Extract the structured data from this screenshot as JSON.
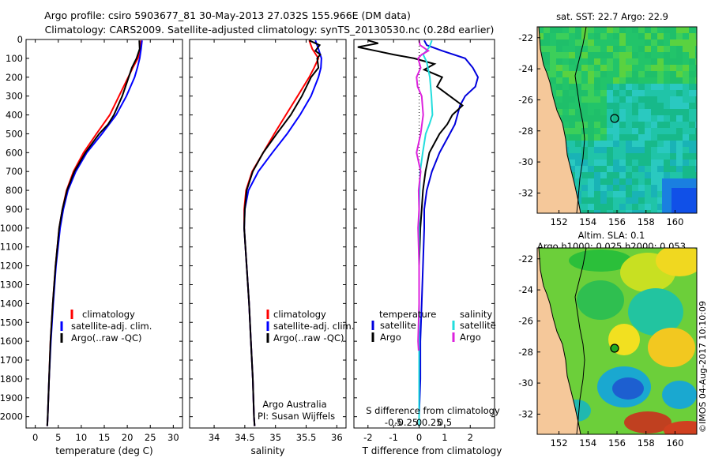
{
  "header": {
    "line1": "Argo profile: csiro 5903677_81 30-May-2013 27.032S 155.966E (DM data)",
    "line2": "Climatology: CARS2009. Satellite-adjusted climatology: synTS_20130530.nc (0.28d earlier)"
  },
  "colors": {
    "climatology": "#ff0000",
    "satellite": "#0000ff",
    "argo": "#000000",
    "t_sat": "#0000dd",
    "s_sat": "#22dddd",
    "s_argo": "#dd22dd"
  },
  "depth_ticks": [
    "0",
    "100",
    "200",
    "300",
    "400",
    "500",
    "600",
    "700",
    "800",
    "900",
    "1000",
    "1100",
    "1200",
    "1300",
    "1400",
    "1500",
    "1600",
    "1700",
    "1800",
    "1900",
    "2000"
  ],
  "chart_data": [
    {
      "type": "line",
      "name": "temperature",
      "xlabel": "temperature (deg C)",
      "xlim": [
        -2,
        32
      ],
      "ylim": [
        2060,
        0
      ],
      "xticks": [
        "0",
        "5",
        "10",
        "15",
        "20",
        "25",
        "30"
      ],
      "legend": [
        "climatology",
        "satellite-adj. clim.",
        "Argo(..raw -QC)"
      ],
      "series": [
        {
          "name": "climatology",
          "depth": [
            5,
            50,
            100,
            150,
            200,
            300,
            400,
            500,
            600,
            700,
            800,
            900,
            1000,
            1200,
            1400,
            1600,
            1800,
            2000,
            2050
          ],
          "values": [
            23.0,
            22.9,
            22.3,
            21.2,
            20.2,
            18.2,
            16.2,
            13.3,
            10.5,
            8.3,
            6.8,
            5.9,
            5.2,
            4.4,
            3.8,
            3.3,
            3.0,
            2.7,
            2.6
          ]
        },
        {
          "name": "satellite-adj. clim.",
          "depth": [
            5,
            50,
            100,
            150,
            200,
            300,
            400,
            500,
            600,
            700,
            800,
            900,
            1000,
            1200,
            1400,
            1600,
            1800,
            2000,
            2050
          ],
          "values": [
            23.2,
            23.0,
            22.7,
            22.2,
            21.6,
            19.8,
            17.6,
            14.5,
            11.2,
            8.8,
            7.1,
            6.1,
            5.4,
            4.5,
            3.9,
            3.4,
            3.0,
            2.7,
            2.6
          ]
        },
        {
          "name": "Argo(..raw -QC)",
          "depth": [
            5,
            50,
            100,
            150,
            200,
            300,
            400,
            450,
            500,
            600,
            700,
            800,
            900,
            1000,
            1200,
            1400,
            1600,
            1800,
            2000,
            2050
          ],
          "values": [
            22.6,
            22.7,
            22.0,
            21.0,
            20.3,
            18.9,
            17.1,
            15.8,
            13.9,
            10.9,
            8.5,
            6.9,
            5.9,
            5.2,
            4.4,
            3.8,
            3.3,
            3.0,
            2.7,
            2.6
          ]
        }
      ]
    },
    {
      "type": "line",
      "name": "salinity",
      "xlabel": "salinity",
      "xlim": [
        33.6,
        36.15
      ],
      "ylim": [
        2060,
        0
      ],
      "xticks": [
        "34",
        "34.5",
        "35",
        "35.5",
        "36"
      ],
      "legend": [
        "climatology",
        "satellite-adj. clim.",
        "Argo(..raw -QC)"
      ],
      "annotation": [
        "Argo Australia",
        "PI: Susan Wijffels"
      ],
      "series": [
        {
          "name": "climatology",
          "depth": [
            5,
            50,
            100,
            150,
            200,
            300,
            400,
            500,
            600,
            700,
            800,
            900,
            1000,
            1200,
            1400,
            1600,
            1800,
            2000,
            2050
          ],
          "values": [
            35.55,
            35.6,
            35.7,
            35.63,
            35.55,
            35.36,
            35.17,
            34.98,
            34.8,
            34.62,
            34.52,
            34.49,
            34.49,
            34.53,
            34.57,
            34.6,
            34.63,
            34.65,
            34.66
          ]
        },
        {
          "name": "satellite-adj. clim.",
          "depth": [
            5,
            50,
            100,
            150,
            200,
            300,
            400,
            500,
            600,
            700,
            800,
            900,
            1000,
            1200,
            1400,
            1600,
            1800,
            2000,
            2050
          ],
          "values": [
            35.65,
            35.7,
            35.75,
            35.74,
            35.7,
            35.58,
            35.4,
            35.19,
            34.95,
            34.72,
            34.56,
            34.5,
            34.49,
            34.53,
            34.57,
            34.6,
            34.63,
            34.65,
            34.66
          ]
        },
        {
          "name": "Argo(..raw -QC)",
          "depth": [
            5,
            30,
            60,
            80,
            100,
            150,
            200,
            300,
            400,
            500,
            600,
            700,
            800,
            900,
            1000,
            1200,
            1400,
            1600,
            1800,
            2000,
            2050
          ],
          "values": [
            35.55,
            35.72,
            35.65,
            35.73,
            35.68,
            35.7,
            35.58,
            35.43,
            35.25,
            35.02,
            34.8,
            34.63,
            34.53,
            34.5,
            34.49,
            34.53,
            34.57,
            34.6,
            34.63,
            34.65,
            34.66
          ]
        }
      ]
    },
    {
      "type": "line",
      "name": "differences",
      "xlabel": "T difference from climatology",
      "xlabel2": "S difference from climatology",
      "xlim": [
        -2.55,
        2.95
      ],
      "ylim": [
        2060,
        0
      ],
      "xticks": [
        "-2",
        "-1",
        "0",
        "1",
        "2"
      ],
      "xticks2": [
        "-0.5",
        "-0.25",
        "0",
        "0.25",
        "0.5"
      ],
      "legend_left_title": "temperature",
      "legend_right_title": "salinity",
      "legend_left": [
        "satellite",
        "Argo"
      ],
      "legend_right": [
        "satellite",
        "Argo"
      ],
      "series": [
        {
          "name": "T satellite",
          "depth": [
            5,
            30,
            60,
            100,
            150,
            200,
            250,
            300,
            350,
            400,
            450,
            500,
            600,
            700,
            800,
            900,
            1000,
            1200,
            1400,
            1600,
            1800,
            2000,
            2050
          ],
          "values": [
            0.2,
            0.3,
            0.9,
            1.8,
            2.1,
            2.3,
            2.2,
            1.8,
            1.6,
            1.5,
            1.4,
            1.2,
            0.8,
            0.5,
            0.3,
            0.2,
            0.2,
            0.15,
            0.1,
            0.05,
            0.05,
            0.0,
            0.0
          ]
        },
        {
          "name": "T Argo",
          "depth": [
            5,
            20,
            40,
            60,
            80,
            100,
            130,
            160,
            200,
            250,
            300,
            350,
            400,
            450,
            500,
            550,
            600,
            700,
            800,
            900,
            1000,
            1200,
            1400,
            1600,
            1800,
            2000,
            2050
          ],
          "values": [
            -2.0,
            -1.6,
            -2.4,
            -1.7,
            -1.0,
            -0.2,
            0.6,
            0.2,
            0.9,
            0.7,
            1.2,
            1.7,
            1.3,
            1.1,
            0.8,
            0.6,
            0.4,
            0.25,
            0.15,
            0.1,
            0.05,
            0.0,
            0.0,
            0.0,
            0.0,
            0.0,
            0.0
          ]
        },
        {
          "name": "S satellite",
          "depth": [
            5,
            40,
            80,
            120,
            200,
            300,
            400,
            450,
            500,
            600,
            700,
            800,
            900,
            1000,
            1200,
            1400,
            1600,
            1800,
            2000,
            2050
          ],
          "values": [
            0.25,
            0.2,
            0.08,
            0.15,
            0.21,
            0.24,
            0.26,
            0.2,
            0.13,
            0.07,
            0.02,
            0.01,
            0.0,
            0.0,
            0.0,
            0.0,
            0.0,
            0.0,
            0.0,
            0.0
          ]
        },
        {
          "name": "S Argo",
          "depth": [
            5,
            30,
            60,
            80,
            100,
            150,
            200,
            250,
            300,
            400,
            500,
            600,
            700,
            800,
            900,
            1000,
            1100,
            1200,
            1400,
            1600,
            1650
          ],
          "values": [
            0.0,
            0.02,
            0.18,
            0.05,
            -0.02,
            0.03,
            -0.05,
            -0.03,
            0.05,
            0.08,
            0.03,
            -0.05,
            0.03,
            -0.01,
            0.0,
            -0.02,
            -0.01,
            0.0,
            0.0,
            -0.02,
            -0.01
          ]
        }
      ]
    },
    {
      "type": "heatmap",
      "name": "sst-map",
      "title": "sat. SST: 22.7 Argo: 22.9",
      "xticks": [
        "152",
        "154",
        "156",
        "158",
        "160"
      ],
      "yticks": [
        "-22",
        "-24",
        "-26",
        "-28",
        "-30",
        "-32"
      ],
      "xlim": [
        150.5,
        161.5
      ],
      "ylim": [
        -33.3,
        -21.3
      ],
      "marker": {
        "lon": 155.97,
        "lat": -27.03
      }
    },
    {
      "type": "heatmap",
      "name": "sla-map",
      "title": "Altim. SLA: 0.1",
      "subtitle": "Argo h1000: 0.025 h2000: 0.053",
      "xticks": [
        "152",
        "154",
        "156",
        "158",
        "160"
      ],
      "yticks": [
        "-22",
        "-24",
        "-26",
        "-28",
        "-30",
        "-32"
      ],
      "xlim": [
        150.5,
        161.5
      ],
      "ylim": [
        -33.3,
        -21.3
      ],
      "marker": {
        "lon": 155.97,
        "lat": -27.03
      }
    }
  ],
  "footer": "©IMOS 04-Aug-2017 10:10:09"
}
